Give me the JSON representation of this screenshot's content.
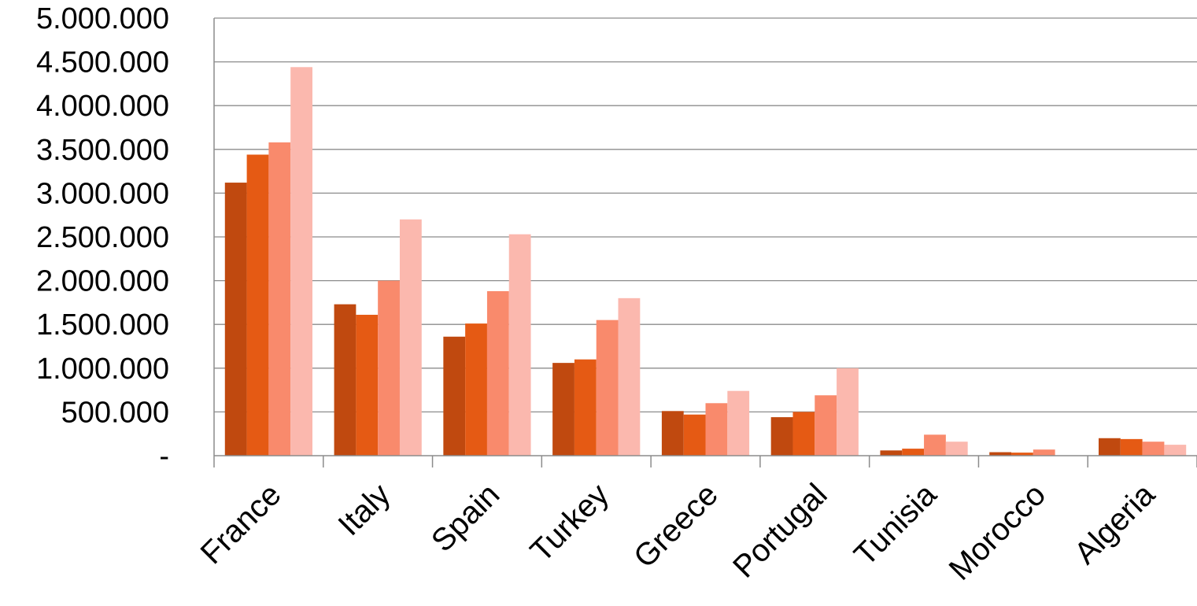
{
  "chart_data": {
    "type": "bar",
    "title": "",
    "xlabel": "",
    "ylabel": "",
    "ylim": [
      0,
      5000000
    ],
    "y_ticks": [
      0,
      500000,
      1000000,
      1500000,
      2000000,
      2500000,
      3000000,
      3500000,
      4000000,
      4500000,
      5000000
    ],
    "y_tick_labels": [
      "-",
      "500.000",
      "1.000.000",
      "1.500.000",
      "2.000.000",
      "2.500.000",
      "3.000.000",
      "3.500.000",
      "4.000.000",
      "4.500.000",
      "5.000.000"
    ],
    "grid": true,
    "legend": "none",
    "categories": [
      "France",
      "Italy",
      "Spain",
      "Turkey",
      "Greece",
      "Portugal",
      "Tunisia",
      "Morocco",
      "Algeria"
    ],
    "series": [
      {
        "color": "#c0490f",
        "values": [
          3120000,
          1730000,
          1360000,
          1060000,
          510000,
          440000,
          60000,
          40000,
          200000
        ]
      },
      {
        "color": "#e55a14",
        "values": [
          3440000,
          1610000,
          1510000,
          1100000,
          470000,
          500000,
          80000,
          35000,
          190000
        ]
      },
      {
        "color": "#f98a6c",
        "values": [
          3580000,
          2000000,
          1880000,
          1550000,
          600000,
          690000,
          240000,
          70000,
          160000
        ]
      },
      {
        "color": "#fbb8ae",
        "values": [
          4440000,
          2700000,
          2530000,
          1800000,
          740000,
          1000000,
          160000,
          0,
          125000
        ]
      }
    ]
  }
}
